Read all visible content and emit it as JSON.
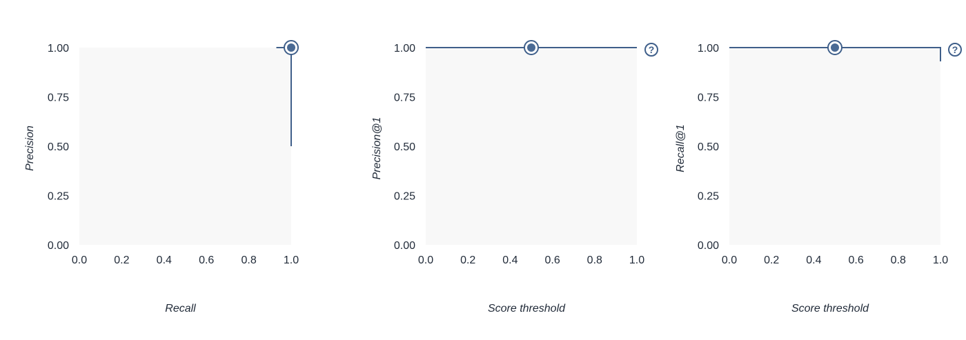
{
  "colors": {
    "line": "#3f5f8a",
    "marker": "#4a6a94",
    "plot_bg": "#f8f8f8",
    "text": "#1f2937"
  },
  "icons": {
    "help": "help-circle-icon",
    "help_glyph": "?"
  },
  "chart_data": [
    {
      "type": "line",
      "id": "pr-curve",
      "xlabel": "Recall",
      "ylabel": "Precision",
      "xlim": [
        0,
        1
      ],
      "ylim": [
        0,
        1
      ],
      "x_ticks": [
        "0.0",
        "0.2",
        "0.4",
        "0.6",
        "0.8",
        "1.0"
      ],
      "y_ticks": [
        "0.00",
        "0.25",
        "0.50",
        "0.75",
        "1.00"
      ],
      "series": [
        {
          "points": [
            [
              0.93,
              1.0
            ],
            [
              1.0,
              1.0
            ],
            [
              1.0,
              0.5
            ]
          ]
        }
      ],
      "highlight_point": [
        1.0,
        1.0
      ],
      "help_icon": false
    },
    {
      "type": "line",
      "id": "precision-at-1",
      "xlabel": "Score threshold",
      "ylabel": "Precision@1",
      "xlim": [
        0,
        1
      ],
      "ylim": [
        0,
        1
      ],
      "x_ticks": [
        "0.0",
        "0.2",
        "0.4",
        "0.6",
        "0.8",
        "1.0"
      ],
      "y_ticks": [
        "0.00",
        "0.25",
        "0.50",
        "0.75",
        "1.00"
      ],
      "series": [
        {
          "points": [
            [
              0.0,
              1.0
            ],
            [
              1.0,
              1.0
            ]
          ]
        }
      ],
      "highlight_point": [
        0.5,
        1.0
      ],
      "help_icon": true
    },
    {
      "type": "line",
      "id": "recall-at-1",
      "xlabel": "Score threshold",
      "ylabel": "Recall@1",
      "xlim": [
        0,
        1
      ],
      "ylim": [
        0,
        1
      ],
      "x_ticks": [
        "0.0",
        "0.2",
        "0.4",
        "0.6",
        "0.8",
        "1.0"
      ],
      "y_ticks": [
        "0.00",
        "0.25",
        "0.50",
        "0.75",
        "1.00"
      ],
      "series": [
        {
          "points": [
            [
              0.0,
              1.0
            ],
            [
              1.0,
              1.0
            ],
            [
              1.0,
              0.93
            ]
          ]
        }
      ],
      "highlight_point": [
        0.5,
        1.0
      ],
      "help_icon": true
    }
  ]
}
